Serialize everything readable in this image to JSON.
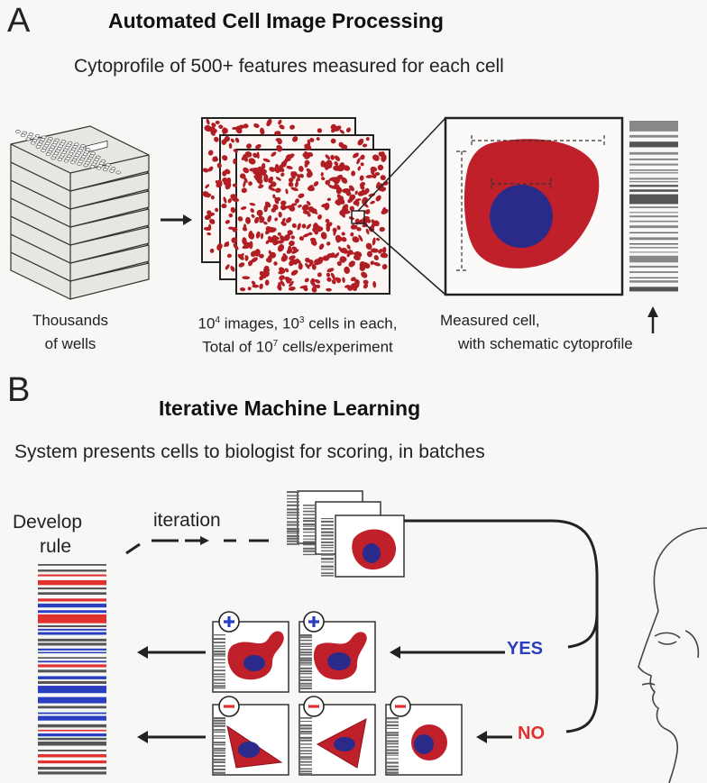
{
  "panel_a": {
    "letter": "A",
    "title": "Automated Cell Image Processing",
    "subtitle": "Cytoprofile of 500+ features measured for each cell",
    "caption_wells_1": "Thousands",
    "caption_wells_2": "of wells",
    "caption_images_1a": "10",
    "caption_images_1a_sup": "4",
    "caption_images_1b": " images, 10",
    "caption_images_1b_sup": "3",
    "caption_images_1c": " cells in each,",
    "caption_images_2a": "Total of 10",
    "caption_images_2a_sup": "7",
    "caption_images_2b": " cells/experiment",
    "caption_cell_1": "Measured cell,",
    "caption_cell_2": "with schematic cytoprofile"
  },
  "panel_b": {
    "letter": "B",
    "title": "Iterative Machine Learning",
    "subtitle": "System presents cells to biologist for scoring, in batches",
    "develop_1": "Develop",
    "develop_2": "rule",
    "iteration": "iteration",
    "yes_label": "YES",
    "no_label": "NO",
    "plus_sign": "+",
    "minus_sign": "−"
  },
  "colors": {
    "cell_red": "#c0202a",
    "nucleus_blue": "#2a2a8a",
    "yes_blue": "#2a3fbf",
    "no_red": "#e03030",
    "line_dark": "#222222"
  }
}
